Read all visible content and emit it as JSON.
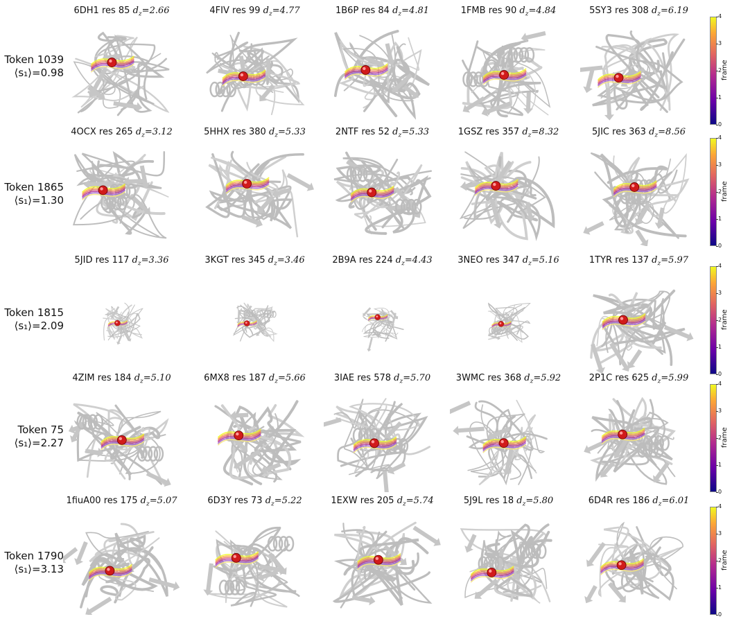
{
  "rows": [
    {
      "token": "Token 1039",
      "s1": "⟨s₁⟩=0.98",
      "panels": [
        {
          "pdb": "6DH1",
          "res": "res 85",
          "dz": "d_z=2.66"
        },
        {
          "pdb": "4FIV",
          "res": "res 99",
          "dz": "d_z=4.77"
        },
        {
          "pdb": "1B6P",
          "res": "res 84",
          "dz": "d_z=4.81"
        },
        {
          "pdb": "1FMB",
          "res": "res 90",
          "dz": "d_z=4.84"
        },
        {
          "pdb": "5SY3",
          "res": "res 308",
          "dz": "d_z=6.19"
        }
      ]
    },
    {
      "token": "Token 1865",
      "s1": "⟨s₁⟩=1.30",
      "panels": [
        {
          "pdb": "4OCX",
          "res": "res 265",
          "dz": "d_z=3.12"
        },
        {
          "pdb": "5HHX",
          "res": "res 380",
          "dz": "d_z=5.33"
        },
        {
          "pdb": "2NTF",
          "res": "res 52",
          "dz": "d_z=5.33"
        },
        {
          "pdb": "1GSZ",
          "res": "res 357",
          "dz": "d_z=8.32"
        },
        {
          "pdb": "5JIC",
          "res": "res 363",
          "dz": "d_z=8.56"
        }
      ]
    },
    {
      "token": "Token 1815",
      "s1": "⟨s₁⟩=2.09",
      "panels": [
        {
          "pdb": "5JID",
          "res": "res 117",
          "dz": "d_z=3.36"
        },
        {
          "pdb": "3KGT",
          "res": "res 345",
          "dz": "d_z=3.46"
        },
        {
          "pdb": "2B9A",
          "res": "res 224",
          "dz": "d_z=4.43"
        },
        {
          "pdb": "3NEO",
          "res": "res 347",
          "dz": "d_z=5.16"
        },
        {
          "pdb": "1TYR",
          "res": "res 137",
          "dz": "d_z=5.97"
        }
      ]
    },
    {
      "token": "Token 75",
      "s1": "⟨s₁⟩=2.27",
      "panels": [
        {
          "pdb": "4ZIM",
          "res": "res 184",
          "dz": "d_z=5.10"
        },
        {
          "pdb": "6MX8",
          "res": "res 187",
          "dz": "d_z=5.66"
        },
        {
          "pdb": "3IAE",
          "res": "res 578",
          "dz": "d_z=5.70"
        },
        {
          "pdb": "3WMC",
          "res": "res 368",
          "dz": "d_z=5.92"
        },
        {
          "pdb": "2P1C",
          "res": "res 625",
          "dz": "d_z=5.99"
        }
      ]
    },
    {
      "token": "Token 1790",
      "s1": "⟨s₁⟩=3.13",
      "panels": [
        {
          "pdb": "1fiuA00",
          "res": "res 175",
          "dz": "d_z=5.07"
        },
        {
          "pdb": "6D3Y",
          "res": "res 73",
          "dz": "d_z=5.22"
        },
        {
          "pdb": "1EXW",
          "res": "res 205",
          "dz": "d_z=5.74"
        },
        {
          "pdb": "5J9L",
          "res": "res 18",
          "dz": "d_z=5.80"
        },
        {
          "pdb": "6D4R",
          "res": "res 186",
          "dz": "d_z=6.01"
        }
      ]
    }
  ],
  "colorbar": {
    "label": "frame",
    "ticks": [
      "0",
      "1",
      "2",
      "3",
      "4"
    ]
  },
  "colors": {
    "protein": "#bdbdbd",
    "sphere": "#d11b1b",
    "colormap": "plasma"
  }
}
